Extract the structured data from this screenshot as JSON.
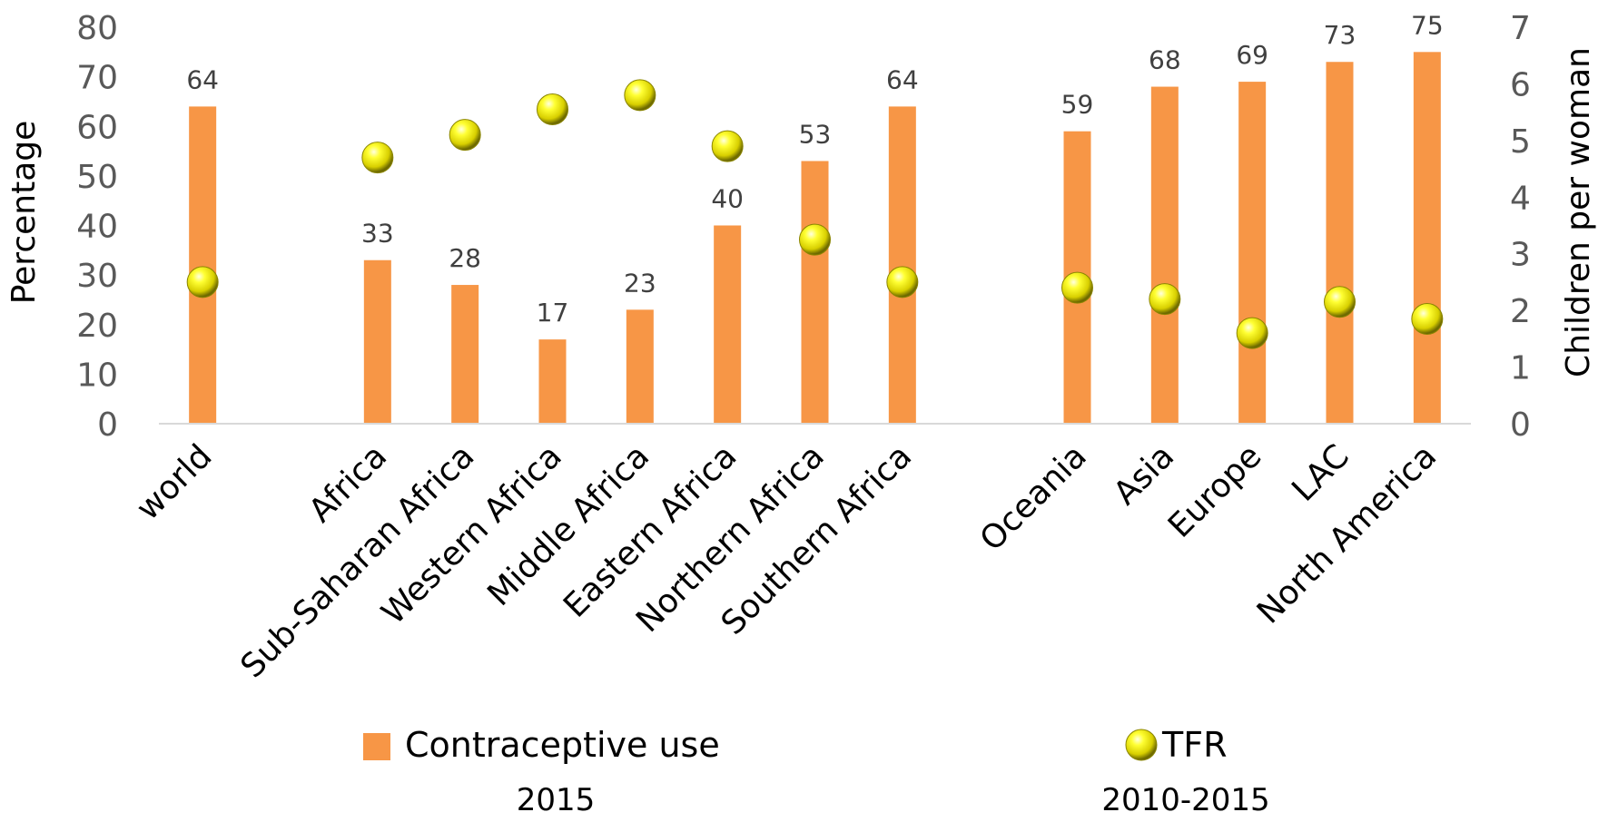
{
  "chart_data": {
    "type": "bar",
    "title": "",
    "categories": [
      "world",
      "",
      "Africa",
      "Sub-Saharan Africa",
      "Western Africa",
      "Middle Africa",
      "Eastern Africa",
      "Northern Africa",
      "Southern Africa",
      "",
      "Oceania",
      "Asia",
      "Europe",
      "LAC",
      "North America"
    ],
    "series": [
      {
        "name": "Contraceptive use",
        "kind": "bar",
        "axis": "left",
        "color": "#F79646",
        "values": [
          64,
          null,
          33,
          28,
          17,
          23,
          40,
          53,
          64,
          null,
          59,
          68,
          69,
          73,
          75
        ],
        "data_labels": [
          "64",
          "",
          "33",
          "28",
          "17",
          "23",
          "40",
          "53",
          "64",
          "",
          "59",
          "68",
          "69",
          "73",
          "75"
        ]
      },
      {
        "name": "TFR",
        "kind": "scatter",
        "axis": "right",
        "color": "#FFFF00",
        "values": [
          2.5,
          null,
          4.7,
          5.1,
          5.55,
          5.8,
          4.9,
          3.25,
          2.5,
          null,
          2.4,
          2.2,
          1.6,
          2.15,
          1.85
        ]
      }
    ],
    "ylabel": "Percentage",
    "ylim": [
      0,
      80
    ],
    "yticks": [
      "0",
      "10",
      "20",
      "30",
      "40",
      "50",
      "60",
      "70",
      "80"
    ],
    "y2label": "Children per woman",
    "y2lim": [
      0,
      7
    ],
    "y2ticks": [
      "0",
      "1",
      "2",
      "3",
      "4",
      "5",
      "6",
      "7"
    ],
    "legend": [
      {
        "label": "Contraceptive use",
        "sub": "2015",
        "symbol": "bar"
      },
      {
        "label": "TFR",
        "sub": "2010-2015",
        "symbol": "sphere"
      }
    ],
    "legend_position": "bottom",
    "grid": false
  }
}
